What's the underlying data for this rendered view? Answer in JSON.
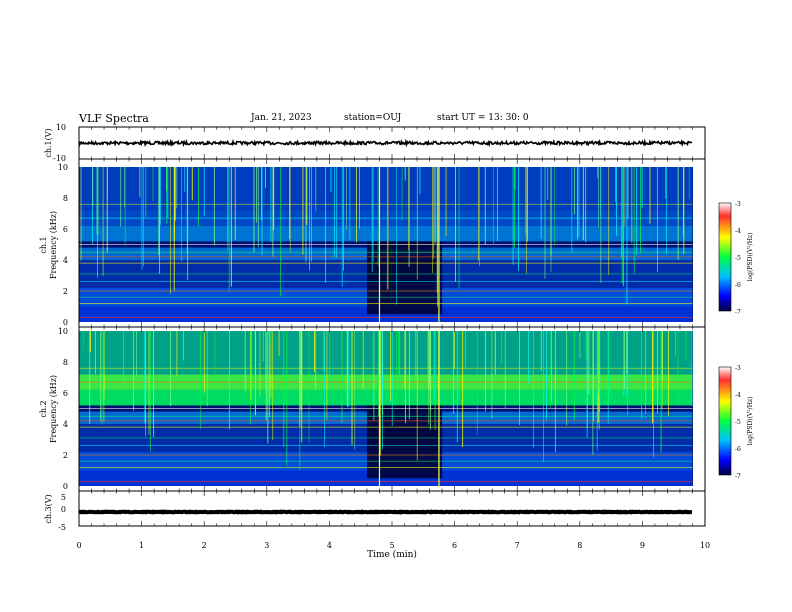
{
  "header": {
    "title": "VLF Spectra",
    "date": "Jan. 21, 2023",
    "station": "station=OUJ",
    "start": "start  UT =  13: 30: 0"
  },
  "chart_data": [
    {
      "type": "line",
      "panel": "ch1-waveform",
      "ylabel": "ch.1(V)",
      "ylim": [
        -10,
        10
      ],
      "ytick_labels": [
        "10",
        "-10"
      ],
      "baseline_value": 0,
      "trace_color": "#000000"
    },
    {
      "type": "heatmap",
      "panel": "ch1-spectrogram",
      "ylabel": "ch.1\nFrequency  (kHz)",
      "ylim": [
        0,
        10
      ],
      "ytick_labels": [
        "0",
        "2",
        "4",
        "6",
        "8",
        "10"
      ],
      "colorbar": {
        "label": "log(PSD)(V²/Hz)",
        "range": [
          -7,
          -3
        ],
        "tick_labels": [
          "-3",
          "-4",
          "-5",
          "-6",
          "-7"
        ],
        "colors": [
          "#ffffff",
          "#ff0000",
          "#ffff00",
          "#00ff00",
          "#00ffff",
          "#0000ff",
          "#000040"
        ]
      }
    },
    {
      "type": "heatmap",
      "panel": "ch2-spectrogram",
      "ylabel": "ch.2\nFrequency  (kHz)",
      "ylim": [
        0,
        10
      ],
      "ytick_labels": [
        "0",
        "2",
        "4",
        "6",
        "8",
        "10"
      ],
      "colorbar": {
        "label": "log(PSD)(V²/Hz)",
        "range": [
          -7,
          -3
        ],
        "tick_labels": [
          "-3",
          "-4",
          "-5",
          "-6",
          "-7"
        ],
        "colors": [
          "#ffffff",
          "#ff0000",
          "#ffff00",
          "#00ff00",
          "#00ffff",
          "#0000ff",
          "#000040"
        ]
      }
    },
    {
      "type": "line",
      "panel": "ch3-waveform",
      "ylabel": "ch.3(V)",
      "ylim": [
        -5,
        5
      ],
      "ytick_labels": [
        "5",
        "0",
        "-5"
      ],
      "baseline_value": -1,
      "trace_color": "#000000"
    }
  ],
  "xaxis": {
    "label": "Time  (min)",
    "range": [
      0,
      10
    ],
    "tick_labels": [
      "0",
      "1",
      "2",
      "3",
      "4",
      "5",
      "6",
      "7",
      "8",
      "9",
      "10"
    ],
    "data_end_min": 9.8
  }
}
